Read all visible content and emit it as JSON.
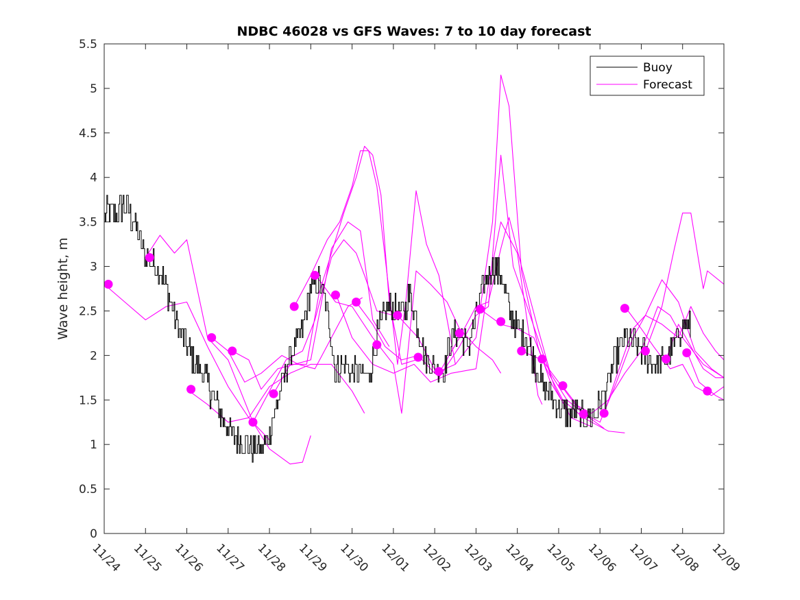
{
  "chart_data": {
    "type": "line",
    "title": "NDBC 46028 vs GFS Waves: 7 to 10 day forecast",
    "xlabel": "",
    "ylabel": "Wave height, m",
    "xlim": [
      0,
      15
    ],
    "ylim": [
      0,
      5.5
    ],
    "x_tick_labels": [
      "11/24",
      "11/25",
      "11/26",
      "11/27",
      "11/28",
      "11/29",
      "11/30",
      "12/01",
      "12/02",
      "12/03",
      "12/04",
      "12/05",
      "12/06",
      "12/07",
      "12/08",
      "12/09"
    ],
    "y_tick_labels": [
      "0",
      "0.5",
      "1",
      "1.5",
      "2",
      "2.5",
      "3",
      "3.5",
      "4",
      "4.5",
      "5",
      "5.5"
    ],
    "legend": {
      "location": "top-right",
      "entries": [
        {
          "label": "Buoy",
          "color": "#000000"
        },
        {
          "label": "Forecast",
          "color": "#ff00ff"
        }
      ]
    },
    "colors": {
      "buoy": "#000000",
      "forecast": "#ff00ff",
      "axes": "#262626"
    },
    "buoy_anchors": [
      [
        0.0,
        3.6
      ],
      [
        0.3,
        3.6
      ],
      [
        0.5,
        3.7
      ],
      [
        0.8,
        3.4
      ],
      [
        1.0,
        3.1
      ],
      [
        1.2,
        3.05
      ],
      [
        1.4,
        2.9
      ],
      [
        1.6,
        2.6
      ],
      [
        1.8,
        2.3
      ],
      [
        2.0,
        2.1
      ],
      [
        2.2,
        1.9
      ],
      [
        2.4,
        1.8
      ],
      [
        2.6,
        1.55
      ],
      [
        2.8,
        1.35
      ],
      [
        3.0,
        1.2
      ],
      [
        3.2,
        1.05
      ],
      [
        3.4,
        1.0
      ],
      [
        3.6,
        0.95
      ],
      [
        3.8,
        0.93
      ],
      [
        4.0,
        1.15
      ],
      [
        4.2,
        1.5
      ],
      [
        4.4,
        1.85
      ],
      [
        4.6,
        2.1
      ],
      [
        4.8,
        2.3
      ],
      [
        5.0,
        2.75
      ],
      [
        5.2,
        2.85
      ],
      [
        5.4,
        2.5
      ],
      [
        5.6,
        1.8
      ],
      [
        5.8,
        1.9
      ],
      [
        6.0,
        1.8
      ],
      [
        6.2,
        1.8
      ],
      [
        6.4,
        1.75
      ],
      [
        6.6,
        2.2
      ],
      [
        6.8,
        2.5
      ],
      [
        7.0,
        2.55
      ],
      [
        7.2,
        2.45
      ],
      [
        7.4,
        2.7
      ],
      [
        7.6,
        2.3
      ],
      [
        7.8,
        1.95
      ],
      [
        8.0,
        1.85
      ],
      [
        8.2,
        1.8
      ],
      [
        8.4,
        2.2
      ],
      [
        8.6,
        2.25
      ],
      [
        8.8,
        2.1
      ],
      [
        9.0,
        2.45
      ],
      [
        9.2,
        2.8
      ],
      [
        9.4,
        3.0
      ],
      [
        9.6,
        2.9
      ],
      [
        9.8,
        2.5
      ],
      [
        10.0,
        2.3
      ],
      [
        10.2,
        2.2
      ],
      [
        10.4,
        1.95
      ],
      [
        10.6,
        1.65
      ],
      [
        10.8,
        1.55
      ],
      [
        11.0,
        1.4
      ],
      [
        11.2,
        1.35
      ],
      [
        11.4,
        1.35
      ],
      [
        11.6,
        1.3
      ],
      [
        11.8,
        1.3
      ],
      [
        12.0,
        1.45
      ],
      [
        12.2,
        1.7
      ],
      [
        12.4,
        2.0
      ],
      [
        12.6,
        2.2
      ],
      [
        12.8,
        2.15
      ],
      [
        13.0,
        2.05
      ],
      [
        13.2,
        1.95
      ],
      [
        13.4,
        1.9
      ],
      [
        13.6,
        1.95
      ],
      [
        13.8,
        2.1
      ],
      [
        14.0,
        2.35
      ],
      [
        14.2,
        2.3
      ]
    ],
    "buoy_noise": 0.16,
    "forecast_series": [
      [
        [
          0.0,
          2.8
        ],
        [
          0.5,
          2.6
        ],
        [
          1.0,
          2.4
        ],
        [
          1.5,
          2.55
        ],
        [
          2.0,
          2.6
        ],
        [
          2.5,
          2.1
        ],
        [
          3.0,
          1.65
        ],
        [
          3.5,
          1.3
        ],
        [
          4.0,
          1.05
        ]
      ],
      [
        [
          1.0,
          3.1
        ],
        [
          1.35,
          3.35
        ],
        [
          1.7,
          3.15
        ],
        [
          2.0,
          3.3
        ],
        [
          2.5,
          2.2
        ],
        [
          3.0,
          1.95
        ],
        [
          3.3,
          1.6
        ],
        [
          3.6,
          1.25
        ],
        [
          4.0,
          0.95
        ],
        [
          4.5,
          0.78
        ],
        [
          4.8,
          0.8
        ],
        [
          5.0,
          1.1
        ]
      ],
      [
        [
          2.0,
          1.62
        ],
        [
          2.5,
          1.45
        ],
        [
          3.0,
          1.25
        ],
        [
          3.5,
          1.3
        ],
        [
          4.0,
          1.65
        ],
        [
          4.5,
          1.8
        ],
        [
          5.0,
          1.9
        ],
        [
          5.5,
          1.9
        ],
        [
          6.0,
          1.6
        ],
        [
          6.3,
          1.35
        ]
      ],
      [
        [
          2.6,
          2.2
        ],
        [
          3.0,
          2.05
        ],
        [
          3.4,
          1.7
        ],
        [
          3.8,
          1.8
        ],
        [
          4.3,
          2.0
        ],
        [
          4.7,
          1.9
        ],
        [
          5.1,
          1.85
        ],
        [
          5.5,
          2.2
        ],
        [
          5.9,
          2.55
        ],
        [
          6.25,
          2.65
        ]
      ],
      [
        [
          3.1,
          2.05
        ],
        [
          3.5,
          1.95
        ],
        [
          3.8,
          1.62
        ],
        [
          4.2,
          1.85
        ],
        [
          4.6,
          1.9
        ],
        [
          5.0,
          1.95
        ],
        [
          5.5,
          3.2
        ],
        [
          5.9,
          3.5
        ],
        [
          6.2,
          3.4
        ],
        [
          6.5,
          2.4
        ],
        [
          6.9,
          2.1
        ]
      ],
      [
        [
          3.6,
          1.25
        ],
        [
          4.0,
          1.6
        ],
        [
          4.4,
          1.95
        ],
        [
          4.8,
          2.05
        ],
        [
          5.1,
          2.4
        ],
        [
          5.5,
          3.1
        ],
        [
          5.8,
          3.3
        ],
        [
          6.1,
          3.15
        ],
        [
          6.3,
          2.9
        ],
        [
          6.6,
          2.5
        ],
        [
          7.0,
          2.45
        ]
      ],
      [
        [
          4.1,
          1.57
        ],
        [
          4.5,
          1.9
        ],
        [
          4.9,
          1.9
        ],
        [
          5.2,
          2.7
        ],
        [
          5.5,
          3.15
        ],
        [
          5.8,
          3.6
        ],
        [
          6.1,
          4.0
        ],
        [
          6.3,
          4.35
        ],
        [
          6.5,
          4.25
        ],
        [
          6.7,
          3.8
        ],
        [
          6.9,
          2.6
        ],
        [
          7.2,
          1.9
        ],
        [
          7.55,
          1.95
        ]
      ],
      [
        [
          4.6,
          2.55
        ],
        [
          5.0,
          2.9
        ],
        [
          5.4,
          3.3
        ],
        [
          5.7,
          3.5
        ],
        [
          6.0,
          3.9
        ],
        [
          6.2,
          4.3
        ],
        [
          6.4,
          4.3
        ],
        [
          6.6,
          3.9
        ],
        [
          6.9,
          2.7
        ],
        [
          7.1,
          1.9
        ],
        [
          7.3,
          2.6
        ],
        [
          7.55,
          3.85
        ],
        [
          7.8,
          3.25
        ],
        [
          8.1,
          2.9
        ],
        [
          8.5,
          1.9
        ]
      ],
      [
        [
          5.2,
          2.85
        ],
        [
          5.6,
          2.6
        ],
        [
          6.0,
          2.55
        ],
        [
          6.5,
          2.2
        ],
        [
          7.0,
          1.9
        ],
        [
          7.2,
          1.35
        ],
        [
          7.55,
          2.95
        ],
        [
          7.9,
          2.8
        ],
        [
          8.3,
          2.6
        ],
        [
          8.6,
          2.3
        ],
        [
          9.0,
          2.1
        ],
        [
          9.4,
          1.95
        ],
        [
          9.6,
          1.8
        ]
      ],
      [
        [
          5.6,
          2.7
        ],
        [
          6.0,
          2.2
        ],
        [
          6.5,
          1.9
        ],
        [
          7.0,
          1.8
        ],
        [
          7.5,
          1.9
        ],
        [
          7.9,
          1.7
        ],
        [
          8.4,
          1.8
        ],
        [
          9.0,
          1.85
        ],
        [
          9.3,
          2.8
        ],
        [
          9.6,
          3.5
        ],
        [
          10.0,
          3.15
        ],
        [
          10.5,
          1.55
        ],
        [
          10.6,
          1.45
        ]
      ],
      [
        [
          6.1,
          2.6
        ],
        [
          6.5,
          2.35
        ],
        [
          6.8,
          2.1
        ],
        [
          7.2,
          1.95
        ],
        [
          7.6,
          2.0
        ],
        [
          8.0,
          1.8
        ],
        [
          8.5,
          1.9
        ],
        [
          9.0,
          2.2
        ],
        [
          9.4,
          3.5
        ],
        [
          9.6,
          5.15
        ],
        [
          9.8,
          4.8
        ],
        [
          10.1,
          2.95
        ],
        [
          10.5,
          2.1
        ],
        [
          10.8,
          1.7
        ],
        [
          11.2,
          1.4
        ]
      ],
      [
        [
          7.1,
          2.45
        ],
        [
          7.6,
          2.2
        ],
        [
          8.1,
          1.75
        ],
        [
          8.6,
          2.1
        ],
        [
          9.0,
          2.45
        ],
        [
          9.3,
          2.55
        ],
        [
          9.6,
          4.25
        ],
        [
          9.9,
          3.0
        ],
        [
          10.2,
          2.6
        ],
        [
          10.6,
          2.05
        ],
        [
          10.9,
          1.65
        ],
        [
          11.3,
          1.3
        ],
        [
          11.8,
          1.2
        ]
      ],
      [
        [
          8.1,
          1.8
        ],
        [
          8.6,
          2.2
        ],
        [
          9.0,
          2.55
        ],
        [
          9.3,
          2.6
        ],
        [
          9.6,
          3.2
        ],
        [
          9.8,
          3.55
        ],
        [
          10.1,
          3.0
        ],
        [
          10.5,
          2.3
        ],
        [
          10.8,
          1.8
        ],
        [
          11.2,
          1.5
        ],
        [
          11.6,
          1.35
        ],
        [
          12.1,
          1.18
        ]
      ],
      [
        [
          9.1,
          2.52
        ],
        [
          9.6,
          2.35
        ],
        [
          10.0,
          2.3
        ],
        [
          10.4,
          2.2
        ],
        [
          10.7,
          1.85
        ],
        [
          11.1,
          1.5
        ],
        [
          11.6,
          1.3
        ],
        [
          12.2,
          1.15
        ],
        [
          12.6,
          1.13
        ]
      ],
      [
        [
          10.1,
          2.05
        ],
        [
          10.6,
          1.95
        ],
        [
          11.0,
          1.7
        ],
        [
          11.4,
          1.45
        ],
        [
          11.8,
          1.35
        ],
        [
          12.2,
          1.5
        ],
        [
          12.6,
          1.8
        ],
        [
          13.0,
          2.05
        ],
        [
          13.4,
          2.55
        ],
        [
          13.7,
          2.45
        ],
        [
          14.0,
          2.2
        ],
        [
          14.5,
          1.9
        ],
        [
          15.0,
          1.75
        ]
      ],
      [
        [
          11.1,
          1.65
        ],
        [
          11.6,
          1.35
        ],
        [
          12.0,
          1.25
        ],
        [
          12.4,
          1.7
        ],
        [
          12.8,
          2.2
        ],
        [
          13.1,
          2.45
        ],
        [
          13.5,
          2.85
        ],
        [
          13.9,
          2.6
        ],
        [
          14.3,
          2.05
        ],
        [
          14.7,
          1.85
        ],
        [
          15.0,
          1.75
        ]
      ],
      [
        [
          12.1,
          1.35
        ],
        [
          12.5,
          1.9
        ],
        [
          12.8,
          2.3
        ],
        [
          13.1,
          2.45
        ],
        [
          13.5,
          2.35
        ],
        [
          13.9,
          2.2
        ],
        [
          14.2,
          2.55
        ],
        [
          14.5,
          2.25
        ],
        [
          14.8,
          2.05
        ],
        [
          15.0,
          1.95
        ]
      ],
      [
        [
          12.6,
          2.55
        ],
        [
          13.0,
          2.3
        ],
        [
          13.3,
          2.1
        ],
        [
          13.7,
          1.85
        ],
        [
          14.0,
          1.9
        ],
        [
          14.3,
          1.65
        ],
        [
          14.7,
          1.55
        ],
        [
          15.0,
          1.65
        ]
      ],
      [
        [
          13.6,
          1.95
        ],
        [
          13.9,
          2.35
        ],
        [
          14.2,
          2.1
        ],
        [
          14.5,
          1.85
        ],
        [
          14.8,
          1.75
        ],
        [
          15.0,
          1.75
        ]
      ],
      [
        [
          13.1,
          2.05
        ],
        [
          13.5,
          2.55
        ],
        [
          13.8,
          3.2
        ],
        [
          14.0,
          3.6
        ],
        [
          14.2,
          3.6
        ],
        [
          14.5,
          2.75
        ],
        [
          14.6,
          2.95
        ],
        [
          15.0,
          2.8
        ]
      ],
      [
        [
          14.1,
          2.05
        ],
        [
          14.4,
          1.7
        ],
        [
          14.8,
          1.55
        ],
        [
          15.0,
          1.5
        ]
      ]
    ],
    "forecast_markers": [
      [
        0.1,
        2.8
      ],
      [
        1.1,
        3.1
      ],
      [
        2.1,
        1.62
      ],
      [
        2.6,
        2.2
      ],
      [
        3.1,
        2.05
      ],
      [
        3.6,
        1.25
      ],
      [
        4.1,
        1.57
      ],
      [
        4.6,
        2.55
      ],
      [
        5.1,
        2.9
      ],
      [
        5.6,
        2.68
      ],
      [
        6.1,
        2.6
      ],
      [
        6.6,
        2.12
      ],
      [
        7.1,
        2.45
      ],
      [
        7.6,
        1.98
      ],
      [
        8.1,
        1.82
      ],
      [
        8.6,
        2.25
      ],
      [
        9.1,
        2.52
      ],
      [
        9.6,
        2.38
      ],
      [
        10.1,
        2.05
      ],
      [
        10.6,
        1.96
      ],
      [
        11.1,
        1.66
      ],
      [
        11.6,
        1.34
      ],
      [
        12.1,
        1.35
      ],
      [
        12.6,
        2.53
      ],
      [
        13.1,
        2.05
      ],
      [
        13.6,
        1.96
      ],
      [
        14.1,
        2.03
      ],
      [
        14.6,
        1.6
      ]
    ]
  }
}
